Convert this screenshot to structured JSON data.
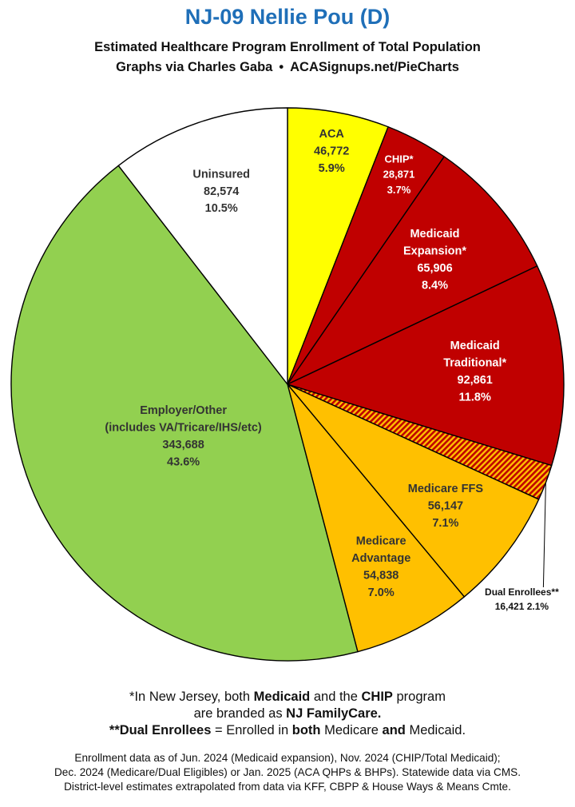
{
  "header": {
    "title": "NJ-09 Nellie Pou (D)",
    "subtitle": "Estimated Healthcare Program Enrollment of Total Population",
    "credit": "Graphs via Charles Gaba",
    "separator": "•",
    "site": "ACASignups.net/PieCharts"
  },
  "chart_data": {
    "type": "pie",
    "title": "NJ-09 Nellie Pou (D)",
    "subtitle": "Estimated Healthcare Program Enrollment of Total Population",
    "start_angle": "12 o'clock",
    "direction": "clockwise",
    "slices": [
      {
        "label": [
          "ACA"
        ],
        "value": 46772,
        "value_text": "46,772",
        "percent": "5.9%",
        "color": "#ffff00",
        "text_color": "#333333"
      },
      {
        "label": [
          "CHIP*"
        ],
        "value": 28871,
        "value_text": "28,871",
        "percent": "3.7%",
        "color": "#c00000",
        "text_color": "#ffffff"
      },
      {
        "label": [
          "Medicaid",
          "Expansion*"
        ],
        "value": 65906,
        "value_text": "65,906",
        "percent": "8.4%",
        "color": "#c00000",
        "text_color": "#ffffff"
      },
      {
        "label": [
          "Medicaid",
          "Traditional*"
        ],
        "value": 92861,
        "value_text": "92,861",
        "percent": "11.8%",
        "color": "#c00000",
        "text_color": "#ffffff"
      },
      {
        "label": [
          "Dual Enrollees**"
        ],
        "value": 16421,
        "value_text": "16,421",
        "percent": "2.1%",
        "color": "#c00000",
        "text_color": "#111111",
        "pattern": "hatched",
        "pattern_colors": [
          "#c00000",
          "#ffc000"
        ],
        "label_outside": true
      },
      {
        "label": [
          "Medicare FFS"
        ],
        "value": 56147,
        "value_text": "56,147",
        "percent": "7.1%",
        "color": "#ffc000",
        "text_color": "#333333"
      },
      {
        "label": [
          "Medicare",
          "Advantage"
        ],
        "value": 54838,
        "value_text": "54,838",
        "percent": "7.0%",
        "color": "#ffc000",
        "text_color": "#333333"
      },
      {
        "label": [
          "Employer/Other",
          "(includes VA/Tricare/IHS/etc)"
        ],
        "value": 343688,
        "value_text": "343,688",
        "percent": "43.6%",
        "color": "#92d050",
        "text_color": "#333333"
      },
      {
        "label": [
          "Uninsured"
        ],
        "value": 82574,
        "value_text": "82,574",
        "percent": "10.5%",
        "color": "#ffffff",
        "text_color": "#333333"
      }
    ]
  },
  "footnotes": {
    "line1": {
      "pre": "*In New Jersey, both ",
      "b1": "Medicaid",
      "mid": " and the ",
      "b2": "CHIP",
      "post": " program"
    },
    "line2": {
      "pre": "are branded as ",
      "b1": "NJ FamilyCare."
    },
    "line3": {
      "b1": "**Dual Enrollees",
      "mid1": " = Enrolled in ",
      "b2": "both",
      "mid2": " Medicare ",
      "b3": "and",
      "post": " Medicaid."
    },
    "source1": "Enrollment data as of Jun. 2024 (Medicaid expansion), Nov. 2024 (CHIP/Total Medicaid);",
    "source2": "Dec. 2024 (Medicare/Dual Eligibles) or Jan. 2025 (ACA QHPs & BHPs). Statewide data via CMS.",
    "source3": "District-level estimates extrapolated from data via KFF, CBPP & House Ways & Means Cmte."
  }
}
